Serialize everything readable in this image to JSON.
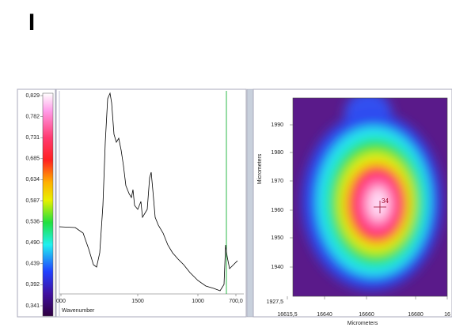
{
  "header": {
    "label": "I"
  },
  "colorbar": {
    "ticks": [
      "0,829",
      "0,782",
      "0,731",
      "0,685",
      "0,634",
      "0,587",
      "0,536",
      "0,490",
      "0,439",
      "0,392",
      "0,341"
    ]
  },
  "spectrum": {
    "x_ticks": [
      "000",
      "1500",
      "1000",
      "700,0"
    ],
    "x_label": "Wavenumber"
  },
  "map": {
    "y_ticks": [
      "1990",
      "1980",
      "1970",
      "1960",
      "1950",
      "1940",
      "1927,5"
    ],
    "x_ticks": [
      "16615,5",
      "16640",
      "16660",
      "16680",
      "16"
    ],
    "y_label": "Micrometers",
    "x_label": "Micrometers",
    "marker_label": "34"
  }
}
